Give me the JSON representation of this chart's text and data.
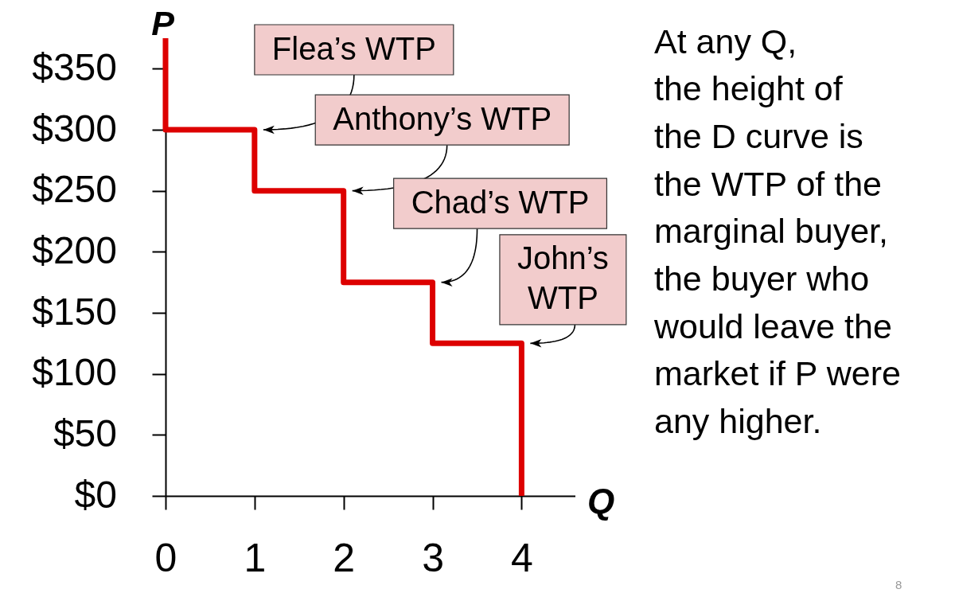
{
  "chart_data": {
    "type": "line",
    "xlabel": "Q",
    "ylabel": "P",
    "x": [
      0,
      0,
      1,
      1,
      2,
      2,
      3,
      3,
      4,
      4
    ],
    "values": [
      375,
      300,
      300,
      250,
      250,
      175,
      175,
      125,
      125,
      0
    ],
    "color": "#dd0000",
    "xlim": [
      0,
      4.6
    ],
    "xticks": [
      0,
      1,
      2,
      3,
      4
    ],
    "ylim": [
      0,
      375
    ],
    "yticks": [
      {
        "value": 0,
        "label": "$0"
      },
      {
        "value": 50,
        "label": "$50"
      },
      {
        "value": 100,
        "label": "$100"
      },
      {
        "value": 150,
        "label": "$150"
      },
      {
        "value": 200,
        "label": "$200"
      },
      {
        "value": 250,
        "label": "$250"
      },
      {
        "value": 300,
        "label": "$300"
      },
      {
        "value": 350,
        "label": "$350"
      }
    ],
    "annotations": [
      {
        "text": "Flea’s WTP",
        "x": 1,
        "y": 300
      },
      {
        "text": "Anthony’s WTP",
        "x": 2,
        "y": 250
      },
      {
        "text": "Chad’s WTP",
        "x": 3,
        "y": 175
      },
      {
        "text": "John’s\nWTP",
        "x": 4,
        "y": 125
      },
      "At any Q,\nthe height of\nthe D curve is\nthe WTP of the\nmarginal buyer,\nthe buyer who\nwould leave the\nmarket if P were\nany higher.",
      "8"
    ]
  }
}
